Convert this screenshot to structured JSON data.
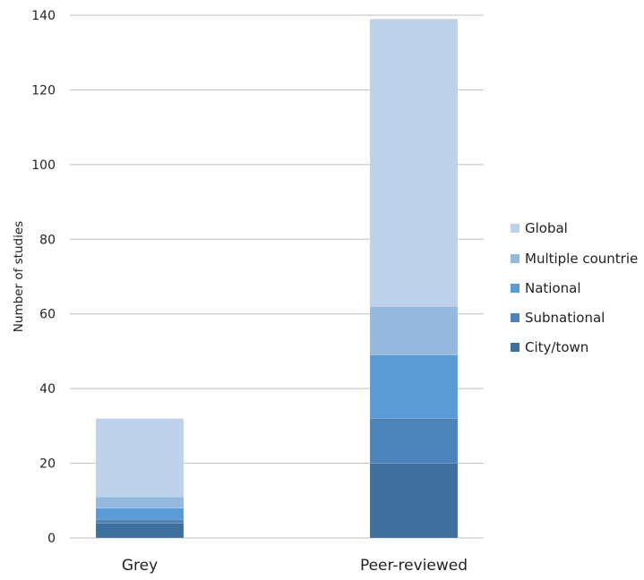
{
  "chart_data": {
    "type": "bar",
    "stacked": true,
    "title": "",
    "xlabel": "",
    "ylabel": "Number of studies",
    "ylim": [
      0,
      140
    ],
    "yticks": [
      0,
      20,
      40,
      60,
      80,
      100,
      120,
      140
    ],
    "grid": true,
    "legend_position": "right",
    "categories": [
      "Grey",
      "Peer-reviewed"
    ],
    "series": [
      {
        "name": "City/town",
        "values": [
          4,
          20
        ],
        "color": "#3f6f9e"
      },
      {
        "name": "Subnational",
        "values": [
          1,
          12
        ],
        "color": "#4b84bb"
      },
      {
        "name": "National",
        "values": [
          3,
          17
        ],
        "color": "#5b9bd5"
      },
      {
        "name": "Multiple countries",
        "values": [
          3,
          13
        ],
        "color": "#95b8de"
      },
      {
        "name": "Global",
        "values": [
          21,
          77
        ],
        "color": "#bdd1ea"
      }
    ],
    "legend_labels": [
      "Global",
      "Multiple countrie",
      "National",
      "Subnational",
      "City/town"
    ],
    "legend_colors": [
      "#bdd1ea",
      "#95b8de",
      "#5b9bd5",
      "#4b84bb",
      "#3f6f9e"
    ]
  }
}
